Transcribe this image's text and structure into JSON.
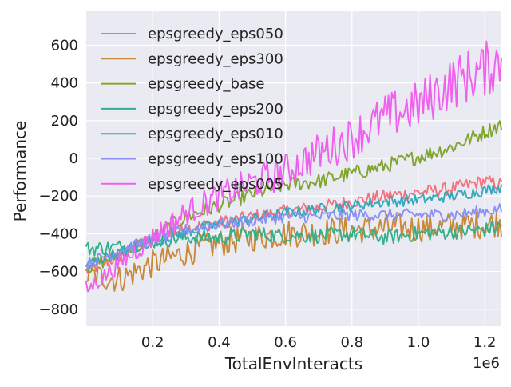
{
  "chart_data": {
    "type": "line",
    "xlabel": "TotalEnvInteracts",
    "ylabel": "Performance",
    "x_offset_label": "1e6",
    "xlim": [
      0,
      1250000
    ],
    "ylim": [
      -890,
      780
    ],
    "x_ticks": [
      200000,
      400000,
      600000,
      800000,
      1000000,
      1200000
    ],
    "x_tick_labels": [
      "0.2",
      "0.4",
      "0.6",
      "0.8",
      "1.0",
      "1.2"
    ],
    "y_ticks": [
      -800,
      -600,
      -400,
      -200,
      0,
      200,
      400,
      600
    ],
    "y_tick_labels": [
      "−800",
      "−600",
      "−400",
      "−200",
      "0",
      "200",
      "400",
      "600"
    ],
    "grid": true,
    "legend_position": "top-left",
    "colors": {
      "background": "#eaeaf2",
      "grid": "#ffffff"
    },
    "series": [
      {
        "name": "epsgreedy_eps050",
        "color": "#f2717d",
        "points": [
          [
            0,
            -600
          ],
          [
            100000,
            -520
          ],
          [
            200000,
            -430
          ],
          [
            300000,
            -370
          ],
          [
            400000,
            -340
          ],
          [
            500000,
            -310
          ],
          [
            600000,
            -280
          ],
          [
            700000,
            -260
          ],
          [
            800000,
            -230
          ],
          [
            900000,
            -200
          ],
          [
            1000000,
            -180
          ],
          [
            1100000,
            -160
          ],
          [
            1200000,
            -120
          ],
          [
            1250000,
            -140
          ]
        ]
      },
      {
        "name": "epsgreedy_eps300",
        "color": "#c8893a",
        "points": [
          [
            0,
            -620
          ],
          [
            100000,
            -640
          ],
          [
            200000,
            -560
          ],
          [
            300000,
            -500
          ],
          [
            400000,
            -450
          ],
          [
            500000,
            -420
          ],
          [
            600000,
            -400
          ],
          [
            700000,
            -390
          ],
          [
            800000,
            -380
          ],
          [
            900000,
            -370
          ],
          [
            1000000,
            -370
          ],
          [
            1100000,
            -360
          ],
          [
            1200000,
            -350
          ],
          [
            1250000,
            -340
          ]
        ]
      },
      {
        "name": "epsgreedy_base",
        "color": "#7fa52c",
        "points": [
          [
            0,
            -580
          ],
          [
            100000,
            -510
          ],
          [
            200000,
            -420
          ],
          [
            300000,
            -310
          ],
          [
            400000,
            -250
          ],
          [
            500000,
            -190
          ],
          [
            600000,
            -140
          ],
          [
            700000,
            -120
          ],
          [
            800000,
            -80
          ],
          [
            900000,
            -40
          ],
          [
            1000000,
            10
          ],
          [
            1100000,
            60
          ],
          [
            1200000,
            140
          ],
          [
            1250000,
            180
          ]
        ]
      },
      {
        "name": "epsgreedy_eps200",
        "color": "#33b08a",
        "points": [
          [
            0,
            -480
          ],
          [
            100000,
            -470
          ],
          [
            200000,
            -440
          ],
          [
            300000,
            -420
          ],
          [
            400000,
            -420
          ],
          [
            500000,
            -400
          ],
          [
            600000,
            -410
          ],
          [
            700000,
            -410
          ],
          [
            800000,
            -400
          ],
          [
            900000,
            -420
          ],
          [
            1000000,
            -400
          ],
          [
            1100000,
            -390
          ],
          [
            1200000,
            -380
          ],
          [
            1250000,
            -360
          ]
        ]
      },
      {
        "name": "epsgreedy_eps010",
        "color": "#35a8bc",
        "points": [
          [
            0,
            -560
          ],
          [
            100000,
            -500
          ],
          [
            200000,
            -440
          ],
          [
            300000,
            -390
          ],
          [
            400000,
            -350
          ],
          [
            500000,
            -320
          ],
          [
            600000,
            -290
          ],
          [
            700000,
            -270
          ],
          [
            800000,
            -250
          ],
          [
            900000,
            -230
          ],
          [
            1000000,
            -220
          ],
          [
            1100000,
            -200
          ],
          [
            1200000,
            -170
          ],
          [
            1250000,
            -150
          ]
        ]
      },
      {
        "name": "epsgreedy_eps100",
        "color": "#8a91f2",
        "points": [
          [
            0,
            -560
          ],
          [
            100000,
            -490
          ],
          [
            200000,
            -430
          ],
          [
            300000,
            -380
          ],
          [
            400000,
            -350
          ],
          [
            500000,
            -330
          ],
          [
            600000,
            -310
          ],
          [
            700000,
            -310
          ],
          [
            800000,
            -300
          ],
          [
            900000,
            -300
          ],
          [
            1000000,
            -300
          ],
          [
            1100000,
            -300
          ],
          [
            1200000,
            -280
          ],
          [
            1250000,
            -270
          ]
        ]
      },
      {
        "name": "epsgreedy_eps005",
        "color": "#f060ef",
        "points": [
          [
            0,
            -700
          ],
          [
            100000,
            -560
          ],
          [
            200000,
            -420
          ],
          [
            300000,
            -290
          ],
          [
            400000,
            -200
          ],
          [
            500000,
            -130
          ],
          [
            600000,
            -70
          ],
          [
            700000,
            30
          ],
          [
            800000,
            110
          ],
          [
            900000,
            220
          ],
          [
            1000000,
            280
          ],
          [
            1100000,
            400
          ],
          [
            1200000,
            470
          ],
          [
            1250000,
            520
          ]
        ]
      }
    ]
  }
}
